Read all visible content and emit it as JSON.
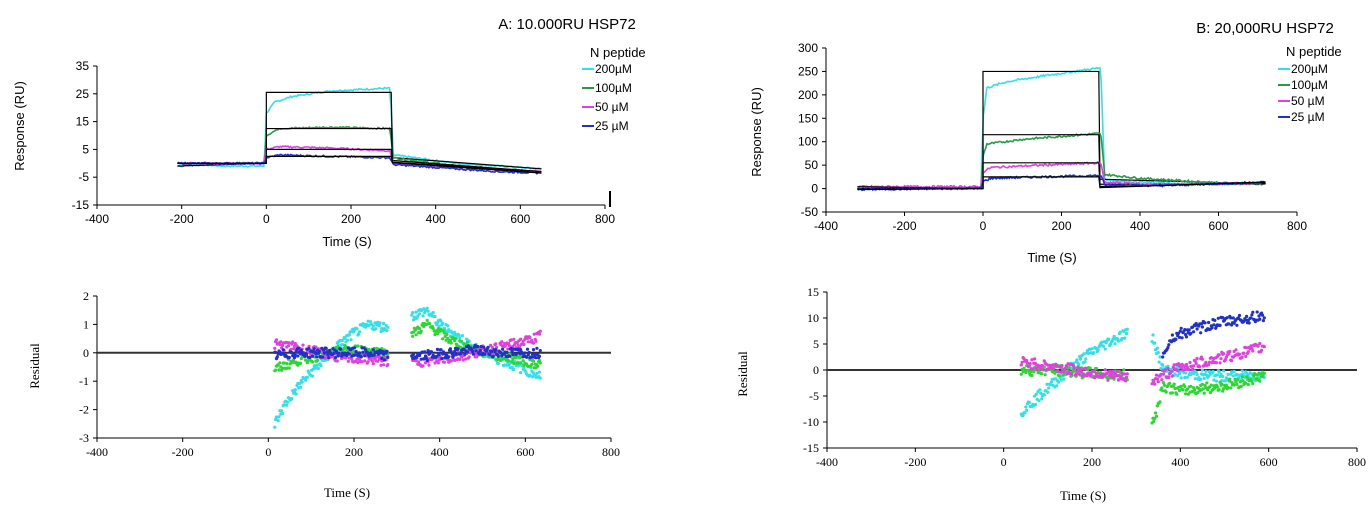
{
  "chart_data": [
    {
      "type": "line",
      "title": "A: 10.000RU HSP72",
      "xlabel": "Time (S)",
      "ylabel": "Response (RU)",
      "xlim": [
        -400,
        800
      ],
      "ylim": [
        -15,
        35
      ],
      "xticks": [
        -400,
        -200,
        0,
        200,
        400,
        600,
        800
      ],
      "yticks": [
        35,
        25,
        15,
        5,
        -5,
        -15
      ],
      "legend_title": "N peptide",
      "legend_position": "top-right",
      "grid": false,
      "series": [
        {
          "name": "200µM",
          "color": "#33e0e8",
          "fit_plateau": 25.5,
          "points": [
            [
              -210,
              0
            ],
            [
              -100,
              -1
            ],
            [
              -5,
              -1
            ],
            [
              0,
              18
            ],
            [
              20,
              22
            ],
            [
              60,
              24
            ],
            [
              150,
              26
            ],
            [
              280,
              27
            ],
            [
              292,
              27
            ],
            [
              300,
              3
            ],
            [
              350,
              2
            ],
            [
              450,
              0
            ],
            [
              550,
              -1
            ],
            [
              650,
              -2
            ]
          ]
        },
        {
          "name": "100µM",
          "color": "#2a9a48",
          "fit_plateau": 12.5,
          "points": [
            [
              -210,
              -1
            ],
            [
              -100,
              0
            ],
            [
              -5,
              0
            ],
            [
              0,
              10
            ],
            [
              30,
              12.5
            ],
            [
              150,
              13
            ],
            [
              292,
              12.5
            ],
            [
              300,
              2
            ],
            [
              350,
              1
            ],
            [
              450,
              -1
            ],
            [
              550,
              -2
            ],
            [
              650,
              -3
            ]
          ]
        },
        {
          "name": "50 µM",
          "color": "#e040e0",
          "fit_plateau": 5,
          "points": [
            [
              -210,
              0
            ],
            [
              -100,
              0
            ],
            [
              -5,
              0
            ],
            [
              0,
              5
            ],
            [
              30,
              6
            ],
            [
              150,
              5.5
            ],
            [
              292,
              4.5
            ],
            [
              300,
              0
            ],
            [
              350,
              -0.5
            ],
            [
              450,
              -1.5
            ],
            [
              550,
              -2.5
            ],
            [
              650,
              -3
            ]
          ]
        },
        {
          "name": "25 µM",
          "color": "#2030c8",
          "fit_plateau": 2.5,
          "points": [
            [
              -210,
              0
            ],
            [
              -100,
              0
            ],
            [
              -5,
              0
            ],
            [
              0,
              2
            ],
            [
              30,
              3
            ],
            [
              150,
              2.5
            ],
            [
              292,
              2
            ],
            [
              300,
              -0.5
            ],
            [
              350,
              -1
            ],
            [
              450,
              -2
            ],
            [
              550,
              -3
            ],
            [
              650,
              -3.5
            ]
          ]
        }
      ]
    },
    {
      "type": "line",
      "title": "B: 20,000RU HSP72",
      "xlabel": "Time (S)",
      "ylabel": "Response (RU)",
      "xlim": [
        -400,
        800
      ],
      "ylim": [
        -50,
        300
      ],
      "xticks": [
        -400,
        -200,
        0,
        200,
        400,
        600,
        800
      ],
      "yticks": [
        300,
        250,
        200,
        150,
        100,
        50,
        0,
        -50
      ],
      "legend_title": "N peptide",
      "legend_position": "top-right",
      "grid": false,
      "series": [
        {
          "name": "200µM",
          "color": "#33e0e8",
          "fit_plateau": 250,
          "points": [
            [
              -320,
              0
            ],
            [
              -5,
              2
            ],
            [
              0,
              150
            ],
            [
              10,
              215
            ],
            [
              60,
              228
            ],
            [
              150,
              240
            ],
            [
              300,
              258
            ],
            [
              310,
              20
            ],
            [
              350,
              16
            ],
            [
              500,
              10
            ],
            [
              720,
              10
            ]
          ]
        },
        {
          "name": "100µM",
          "color": "#2a9a48",
          "fit_plateau": 115,
          "points": [
            [
              -320,
              0
            ],
            [
              -5,
              1
            ],
            [
              0,
              70
            ],
            [
              10,
              95
            ],
            [
              100,
              105
            ],
            [
              300,
              118
            ],
            [
              310,
              30
            ],
            [
              400,
              22
            ],
            [
              600,
              12
            ],
            [
              720,
              10
            ]
          ]
        },
        {
          "name": "50 µM",
          "color": "#e040e0",
          "fit_plateau": 55,
          "points": [
            [
              -320,
              4
            ],
            [
              -5,
              4
            ],
            [
              0,
              35
            ],
            [
              20,
              45
            ],
            [
              150,
              50
            ],
            [
              300,
              55
            ],
            [
              310,
              14
            ],
            [
              450,
              8
            ],
            [
              720,
              12
            ]
          ]
        },
        {
          "name": "25 µM",
          "color": "#2030c8",
          "fit_plateau": 25,
          "points": [
            [
              -320,
              -2
            ],
            [
              -5,
              1
            ],
            [
              0,
              15
            ],
            [
              20,
              22
            ],
            [
              150,
              25
            ],
            [
              300,
              28
            ],
            [
              310,
              8
            ],
            [
              450,
              6
            ],
            [
              720,
              14
            ]
          ]
        }
      ]
    },
    {
      "type": "scatter",
      "title": "",
      "xlabel": "Time (S)",
      "ylabel": "Residual",
      "xlim": [
        -400,
        800
      ],
      "ylim": [
        -3,
        2
      ],
      "xticks": [
        -400,
        -200,
        0,
        200,
        400,
        600,
        800
      ],
      "yticks": [
        2,
        1,
        0,
        -1,
        -2,
        -3
      ],
      "grid": false,
      "series": [
        {
          "color": "#33e0e8",
          "points": [
            [
              15,
              -2.5
            ],
            [
              40,
              -1.8
            ],
            [
              80,
              -1
            ],
            [
              120,
              -0.4
            ],
            [
              160,
              0.2
            ],
            [
              200,
              0.7
            ],
            [
              240,
              1
            ],
            [
              270,
              0.9
            ],
            [
              370,
              1.5
            ],
            [
              400,
              1
            ],
            [
              450,
              0.5
            ],
            [
              500,
              0
            ],
            [
              550,
              -0.3
            ],
            [
              600,
              -0.6
            ],
            [
              635,
              -0.8
            ]
          ]
        },
        {
          "color": "#2ad830",
          "points": [
            [
              15,
              -0.6
            ],
            [
              60,
              -0.3
            ],
            [
              120,
              -0.1
            ],
            [
              180,
              0.1
            ],
            [
              230,
              0.1
            ],
            [
              270,
              0
            ],
            [
              370,
              1
            ],
            [
              420,
              0.5
            ],
            [
              480,
              0.1
            ],
            [
              540,
              -0.1
            ],
            [
              600,
              -0.3
            ],
            [
              635,
              -0.4
            ]
          ]
        },
        {
          "color": "#e040e0",
          "points": [
            [
              15,
              0.3
            ],
            [
              60,
              0.2
            ],
            [
              120,
              0
            ],
            [
              180,
              -0.2
            ],
            [
              230,
              -0.2
            ],
            [
              270,
              -0.3
            ],
            [
              370,
              -0.3
            ],
            [
              420,
              -0.2
            ],
            [
              480,
              0
            ],
            [
              540,
              0.2
            ],
            [
              600,
              0.4
            ],
            [
              635,
              0.6
            ]
          ]
        },
        {
          "color": "#2030c8",
          "points": [
            [
              15,
              -0.1
            ],
            [
              60,
              0
            ],
            [
              120,
              0
            ],
            [
              180,
              0
            ],
            [
              230,
              0
            ],
            [
              270,
              -0.1
            ],
            [
              370,
              -0.1
            ],
            [
              420,
              0
            ],
            [
              480,
              0.1
            ],
            [
              540,
              0
            ],
            [
              600,
              0
            ],
            [
              635,
              0
            ]
          ]
        }
      ]
    },
    {
      "type": "scatter",
      "title": "",
      "xlabel": "Time (S)",
      "ylabel": "Residual",
      "xlim": [
        -400,
        800
      ],
      "ylim": [
        -15,
        15
      ],
      "xticks": [
        -400,
        -200,
        0,
        200,
        400,
        600,
        800
      ],
      "yticks": [
        15,
        10,
        5,
        0,
        -5,
        -10,
        -15
      ],
      "grid": false,
      "series": [
        {
          "color": "#33e0e8",
          "points": [
            [
              40,
              -8
            ],
            [
              80,
              -5
            ],
            [
              120,
              -2
            ],
            [
              160,
              1
            ],
            [
              200,
              3.5
            ],
            [
              240,
              5.5
            ],
            [
              275,
              7
            ],
            [
              340,
              6
            ],
            [
              360,
              0
            ],
            [
              400,
              -0.5
            ],
            [
              450,
              -1
            ],
            [
              500,
              -1.2
            ],
            [
              550,
              -1.2
            ],
            [
              590,
              -1
            ]
          ]
        },
        {
          "color": "#2ad830",
          "points": [
            [
              40,
              0
            ],
            [
              100,
              0
            ],
            [
              150,
              -0.3
            ],
            [
              200,
              -0.6
            ],
            [
              250,
              -1
            ],
            [
              275,
              -1
            ],
            [
              340,
              -10
            ],
            [
              360,
              -3
            ],
            [
              400,
              -4
            ],
            [
              450,
              -3.5
            ],
            [
              500,
              -3
            ],
            [
              550,
              -2
            ],
            [
              590,
              -1
            ]
          ]
        },
        {
          "color": "#e040e0",
          "points": [
            [
              40,
              1.5
            ],
            [
              80,
              1
            ],
            [
              120,
              0.5
            ],
            [
              160,
              0
            ],
            [
              200,
              -0.5
            ],
            [
              240,
              -1
            ],
            [
              275,
              -1.5
            ],
            [
              340,
              -2
            ],
            [
              360,
              -1
            ],
            [
              400,
              0.5
            ],
            [
              450,
              1.5
            ],
            [
              500,
              2.5
            ],
            [
              550,
              3.5
            ],
            [
              590,
              4.5
            ]
          ]
        },
        {
          "color": "#2030c8",
          "points": [
            [
              360,
              3
            ],
            [
              380,
              6
            ],
            [
              400,
              7
            ],
            [
              440,
              8
            ],
            [
              480,
              9
            ],
            [
              520,
              9.5
            ],
            [
              560,
              10
            ],
            [
              590,
              10.5
            ]
          ]
        }
      ]
    }
  ]
}
